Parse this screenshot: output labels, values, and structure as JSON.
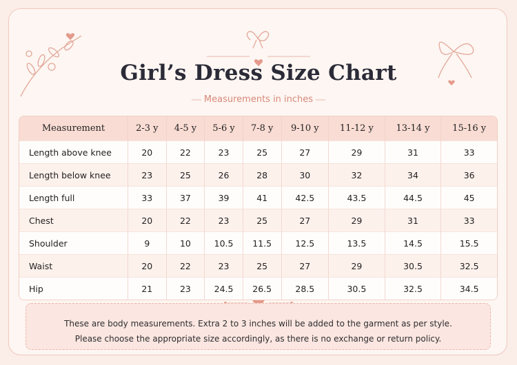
{
  "header": {
    "title": "Girl’s Dress Size Chart",
    "subtitle": "Measurements in inches"
  },
  "table": {
    "columns": [
      "Measurement",
      "2-3 y",
      "4-5 y",
      "5-6 y",
      "7-8 y",
      "9-10 y",
      "11-12 y",
      "13-14 y",
      "15-16 y"
    ],
    "rows": [
      [
        "Length above knee",
        20,
        22,
        23,
        25,
        27,
        29,
        31,
        33
      ],
      [
        "Length below knee",
        23,
        25,
        26,
        28,
        30,
        32,
        34,
        36
      ],
      [
        "Length full",
        33,
        37,
        39,
        41,
        42.5,
        43.5,
        44.5,
        45
      ],
      [
        "Chest",
        20,
        22,
        23,
        25,
        27,
        29,
        31,
        33
      ],
      [
        "Shoulder",
        9,
        10,
        10.5,
        11.5,
        12.5,
        13.5,
        14.5,
        15.5
      ],
      [
        "Waist",
        20,
        22,
        23,
        25,
        27,
        29,
        30.5,
        32.5
      ],
      [
        "Hip",
        21,
        23,
        24.5,
        26.5,
        28.5,
        30.5,
        32.5,
        34.5
      ]
    ]
  },
  "notes": [
    "These are body measurements. Extra 2 to 3 inches will be added to the garment as per style.",
    "Please choose the appropriate size accordingly, as there is no exchange or return policy."
  ]
}
